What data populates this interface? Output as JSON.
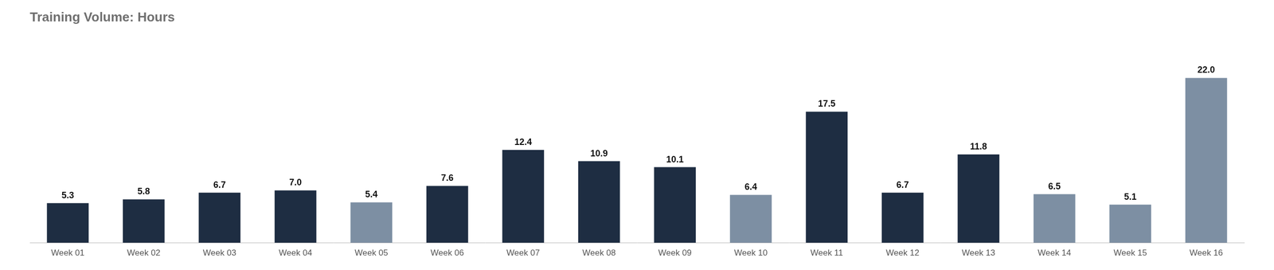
{
  "chart_data": {
    "type": "bar",
    "title": "Training Volume: Hours",
    "categories": [
      "Week 01",
      "Week 02",
      "Week 03",
      "Week 04",
      "Week 05",
      "Week 06",
      "Week 07",
      "Week 08",
      "Week 09",
      "Week 10",
      "Week 11",
      "Week 12",
      "Week 13",
      "Week 14",
      "Week 15",
      "Week 16"
    ],
    "values": [
      5.3,
      5.8,
      6.7,
      7.0,
      5.4,
      7.6,
      12.4,
      10.9,
      10.1,
      6.4,
      17.5,
      6.7,
      11.8,
      6.5,
      5.1,
      22.0
    ],
    "value_labels": [
      "5.3",
      "5.8",
      "6.7",
      "7.0",
      "5.4",
      "7.6",
      "12.4",
      "10.9",
      "10.1",
      "6.4",
      "17.5",
      "6.7",
      "11.8",
      "6.5",
      "5.1",
      "22.0"
    ],
    "colors": [
      "#1e2d42",
      "#1e2d42",
      "#1e2d42",
      "#1e2d42",
      "#7d8fa3",
      "#1e2d42",
      "#1e2d42",
      "#1e2d42",
      "#1e2d42",
      "#7d8fa3",
      "#1e2d42",
      "#1e2d42",
      "#1e2d42",
      "#7d8fa3",
      "#7d8fa3",
      "#7d8fa3"
    ],
    "ylim": [
      0,
      27
    ],
    "grid": false,
    "data_labels": true,
    "tick_labels": "x"
  }
}
